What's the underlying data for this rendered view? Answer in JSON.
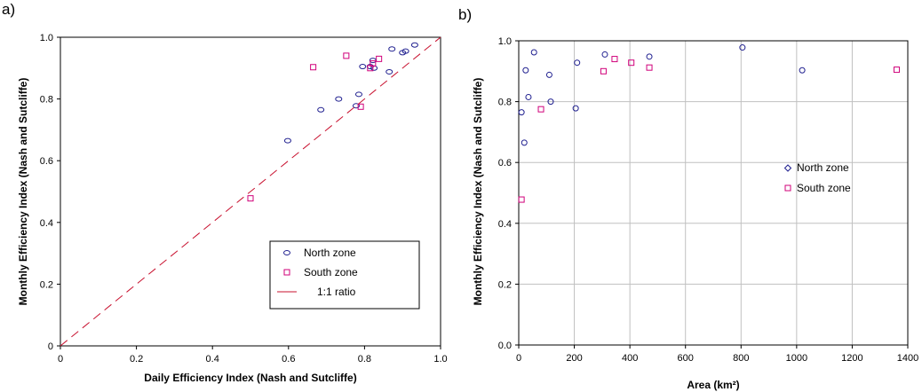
{
  "colors": {
    "north": "#1f1f8f",
    "south": "#d0007a",
    "ratio_line": "#c8102e",
    "grid": "#c0c0c0",
    "axis": "#000000"
  },
  "chart_data": [
    {
      "panel_label": "a)",
      "type": "scatter",
      "xlabel": "Daily Efficiency Index (Nash and Sutcliffe)",
      "ylabel": "Monthly Efficiency Index (Nash and Sutcliffe)",
      "xlim": [
        0,
        1.0
      ],
      "ylim": [
        0,
        1.0
      ],
      "x_ticks": [
        0,
        0.2,
        0.4,
        0.6,
        0.8,
        1.0
      ],
      "x_tick_labels": [
        "0",
        "0.2",
        "0.4",
        "0.6",
        "0.8",
        "1.0"
      ],
      "y_ticks": [
        0,
        0.2,
        0.4,
        0.6,
        0.8,
        1.0
      ],
      "y_tick_labels": [
        "0",
        "0.2",
        "0.4",
        "0.6",
        "0.8",
        "1.0"
      ],
      "grid": false,
      "legend": {
        "placement": "lower-right",
        "items": [
          "North zone",
          "South zone",
          "1:1 ratio"
        ]
      },
      "series": [
        {
          "name": "North zone",
          "marker": "ellipse",
          "points": [
            [
              0.598,
              0.665
            ],
            [
              0.685,
              0.765
            ],
            [
              0.732,
              0.8
            ],
            [
              0.778,
              0.778
            ],
            [
              0.785,
              0.815
            ],
            [
              0.795,
              0.905
            ],
            [
              0.815,
              0.905
            ],
            [
              0.822,
              0.925
            ],
            [
              0.825,
              0.9
            ],
            [
              0.865,
              0.888
            ],
            [
              0.872,
              0.962
            ],
            [
              0.9,
              0.95
            ],
            [
              0.908,
              0.955
            ],
            [
              0.932,
              0.975
            ]
          ]
        },
        {
          "name": "South zone",
          "marker": "square",
          "points": [
            [
              0.5,
              0.478
            ],
            [
              0.665,
              0.903
            ],
            [
              0.752,
              0.94
            ],
            [
              0.79,
              0.775
            ],
            [
              0.815,
              0.9
            ],
            [
              0.822,
              0.915
            ],
            [
              0.838,
              0.93
            ]
          ]
        },
        {
          "name": "1:1 ratio",
          "kind": "line",
          "style": "dashed",
          "points": [
            [
              0,
              0
            ],
            [
              1.0,
              1.0
            ]
          ]
        }
      ]
    },
    {
      "panel_label": "b)",
      "type": "scatter",
      "xlabel": "Area (km²)",
      "ylabel": "Monthly Efficiency Index (Nash and Sutcliffe)",
      "xlim": [
        0,
        1400
      ],
      "ylim": [
        0,
        1.0
      ],
      "x_ticks": [
        0,
        200,
        400,
        600,
        800,
        1000,
        1200,
        1400
      ],
      "x_tick_labels": [
        "0",
        "200",
        "400",
        "600",
        "800",
        "1000",
        "1200",
        "1400"
      ],
      "y_ticks": [
        0,
        0.2,
        0.4,
        0.6,
        0.8,
        1.0
      ],
      "y_tick_labels": [
        "0.0",
        "0.2",
        "0.4",
        "0.6",
        "0.8",
        "1.0"
      ],
      "grid": true,
      "legend": {
        "placement": "center-right",
        "items": [
          "North zone",
          "South zone"
        ]
      },
      "series": [
        {
          "name": "North zone",
          "marker": "ellipse",
          "points": [
            [
              10,
              0.765
            ],
            [
              20,
              0.665
            ],
            [
              25,
              0.903
            ],
            [
              35,
              0.815
            ],
            [
              55,
              0.962
            ],
            [
              110,
              0.888
            ],
            [
              115,
              0.8
            ],
            [
              205,
              0.778
            ],
            [
              210,
              0.928
            ],
            [
              310,
              0.955
            ],
            [
              470,
              0.948
            ],
            [
              805,
              0.978
            ],
            [
              1020,
              0.903
            ]
          ]
        },
        {
          "name": "South zone",
          "marker": "square",
          "points": [
            [
              10,
              0.478
            ],
            [
              80,
              0.775
            ],
            [
              305,
              0.9
            ],
            [
              345,
              0.94
            ],
            [
              405,
              0.928
            ],
            [
              470,
              0.912
            ],
            [
              1360,
              0.905
            ]
          ]
        }
      ]
    }
  ]
}
